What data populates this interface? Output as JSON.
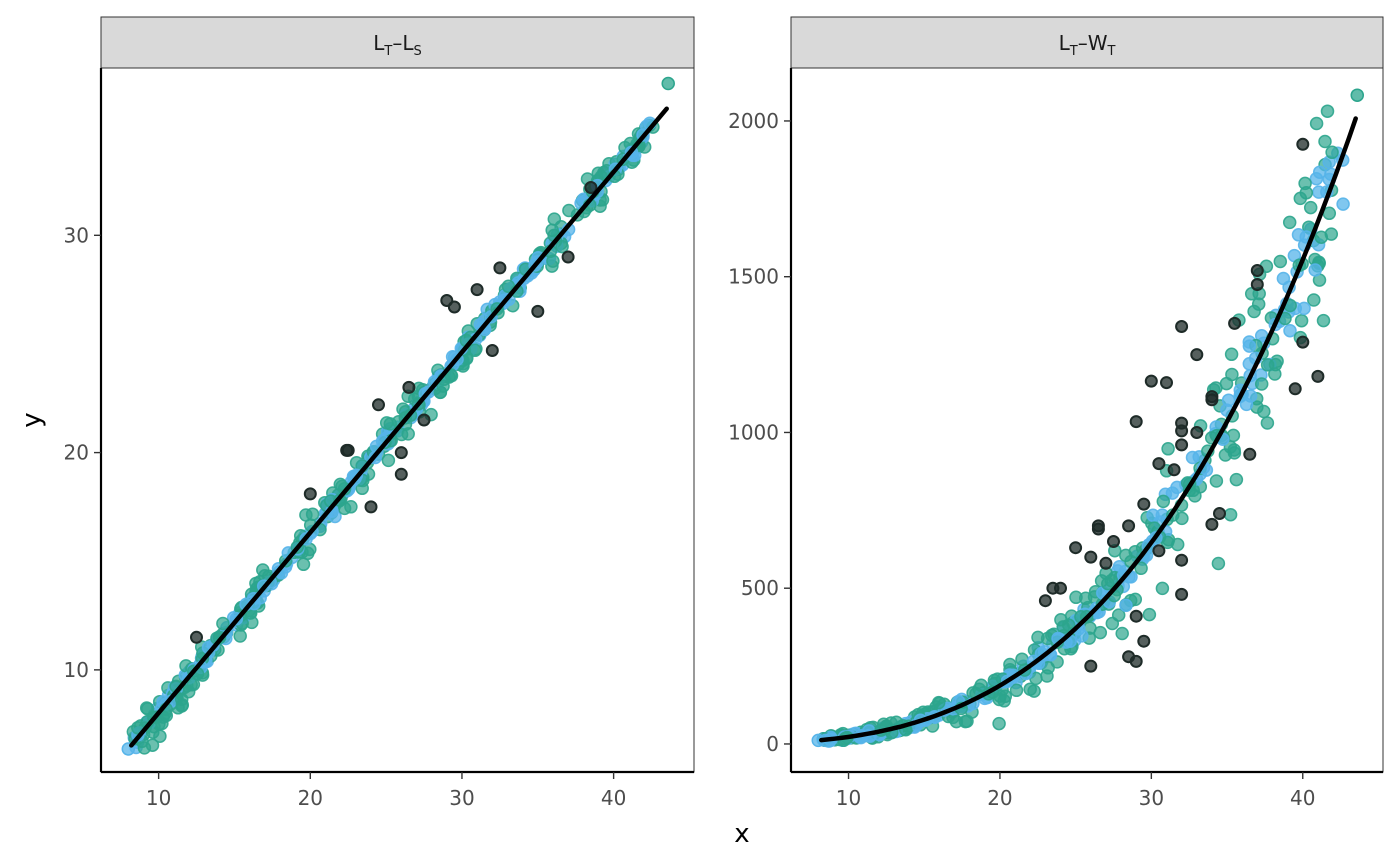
{
  "chart_data": {
    "type": "scatter",
    "x_axis_title": "x",
    "y_axis_title": "y",
    "colors": {
      "light_blue": "#56b4e9",
      "green": "#2ca58d",
      "dark": "#1e2b28",
      "fit": "#000000"
    },
    "panels": [
      {
        "strip": {
          "a": "L",
          "a_sub": "T",
          "sep": "–",
          "b": "L",
          "b_sub": "S"
        },
        "xlim": [
          6.2,
          45.3
        ],
        "ylim": [
          5.3,
          37.7
        ],
        "x_ticks": [
          10,
          20,
          30,
          40
        ],
        "y_ticks": [
          10,
          20,
          30
        ],
        "fit": {
          "kind": "linear",
          "slope": 0.83,
          "intercept": -0.28,
          "x_range": [
            8.2,
            43.5
          ]
        },
        "outliers": [
          [
            12.5,
            11.5
          ],
          [
            22.4,
            20.1
          ],
          [
            22.5,
            20.1
          ],
          [
            24.0,
            17.5
          ],
          [
            24.5,
            22.2
          ],
          [
            26.0,
            19.0
          ],
          [
            26.0,
            20.0
          ],
          [
            26.5,
            23.0
          ],
          [
            27.5,
            21.5
          ],
          [
            29.0,
            27.0
          ],
          [
            29.5,
            26.7
          ],
          [
            31.0,
            27.5
          ],
          [
            32.0,
            24.7
          ],
          [
            32.5,
            28.5
          ],
          [
            35.0,
            26.5
          ],
          [
            37.0,
            29.0
          ],
          [
            20.0,
            18.1
          ],
          [
            38.5,
            32.2
          ]
        ]
      },
      {
        "strip": {
          "a": "L",
          "a_sub": "T",
          "sep": "–",
          "b": "W",
          "b_sub": "T"
        },
        "xlim": [
          6.2,
          45.3
        ],
        "ylim": [
          -90,
          2170
        ],
        "x_ticks": [
          10,
          20,
          30,
          40
        ],
        "y_ticks": [
          0,
          500,
          1000,
          1500,
          2000
        ],
        "fit": {
          "kind": "power",
          "a": 0.0202,
          "b": 3.05,
          "x_range": [
            8.2,
            43.5
          ]
        },
        "outliers": [
          [
            40.0,
            1925
          ],
          [
            37.0,
            1520
          ],
          [
            37.0,
            1475
          ],
          [
            35.5,
            1350
          ],
          [
            32.0,
            1340
          ],
          [
            33.0,
            1250
          ],
          [
            40.0,
            1290
          ],
          [
            41.0,
            1180
          ],
          [
            39.5,
            1140
          ],
          [
            30.0,
            1165
          ],
          [
            31.0,
            1160
          ],
          [
            34.0,
            1115
          ],
          [
            34.0,
            1105
          ],
          [
            29.0,
            1035
          ],
          [
            32.0,
            1030
          ],
          [
            32.0,
            1005
          ],
          [
            33.0,
            1000
          ],
          [
            32.0,
            960
          ],
          [
            36.5,
            930
          ],
          [
            30.5,
            900
          ],
          [
            31.5,
            880
          ],
          [
            29.5,
            770
          ],
          [
            34.0,
            705
          ],
          [
            34.5,
            740
          ],
          [
            26.5,
            700
          ],
          [
            26.5,
            690
          ],
          [
            27.5,
            650
          ],
          [
            25.0,
            630
          ],
          [
            28.5,
            700
          ],
          [
            24.0,
            500
          ],
          [
            23.5,
            500
          ],
          [
            23.0,
            460
          ],
          [
            26.0,
            600
          ],
          [
            29.0,
            410
          ],
          [
            29.5,
            330
          ],
          [
            28.5,
            280
          ],
          [
            29.0,
            265
          ],
          [
            26.0,
            250
          ],
          [
            32.0,
            480
          ],
          [
            32.0,
            590
          ],
          [
            30.5,
            620
          ],
          [
            27.0,
            580
          ]
        ]
      }
    ]
  }
}
